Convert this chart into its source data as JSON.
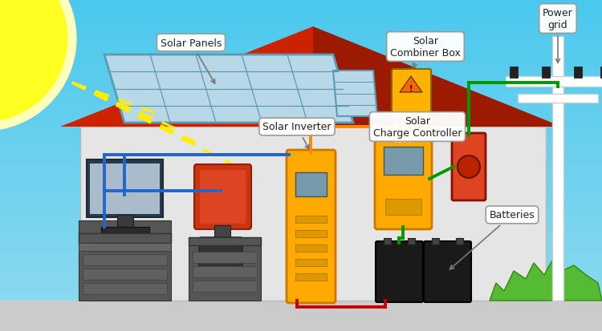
{
  "wire_orange": "#FF8800",
  "wire_blue": "#2266CC",
  "wire_green": "#009900",
  "wire_red": "#CC0000",
  "labels": {
    "solar_panels": "Solar Panels",
    "combiner_box": "Solar\nCombiner Box",
    "solar_inverter": "Solar Inverter",
    "charge_controller": "Solar\nCharge Controller",
    "batteries": "Batteries",
    "power_grid": "Power\ngrid"
  },
  "sky_top": "#4BC8EE",
  "sky_bottom": "#90DAEE",
  "ground_color": "#CBCBCB",
  "sun_color": "#FFFF22",
  "roof_left_color": "#CC2200",
  "roof_right_color": "#9B1A00",
  "wall_color": "#E5E5E5",
  "panel_fill": "#B8D8E8",
  "panel_line": "#5A9AB5",
  "grass_color": "#55BB33"
}
